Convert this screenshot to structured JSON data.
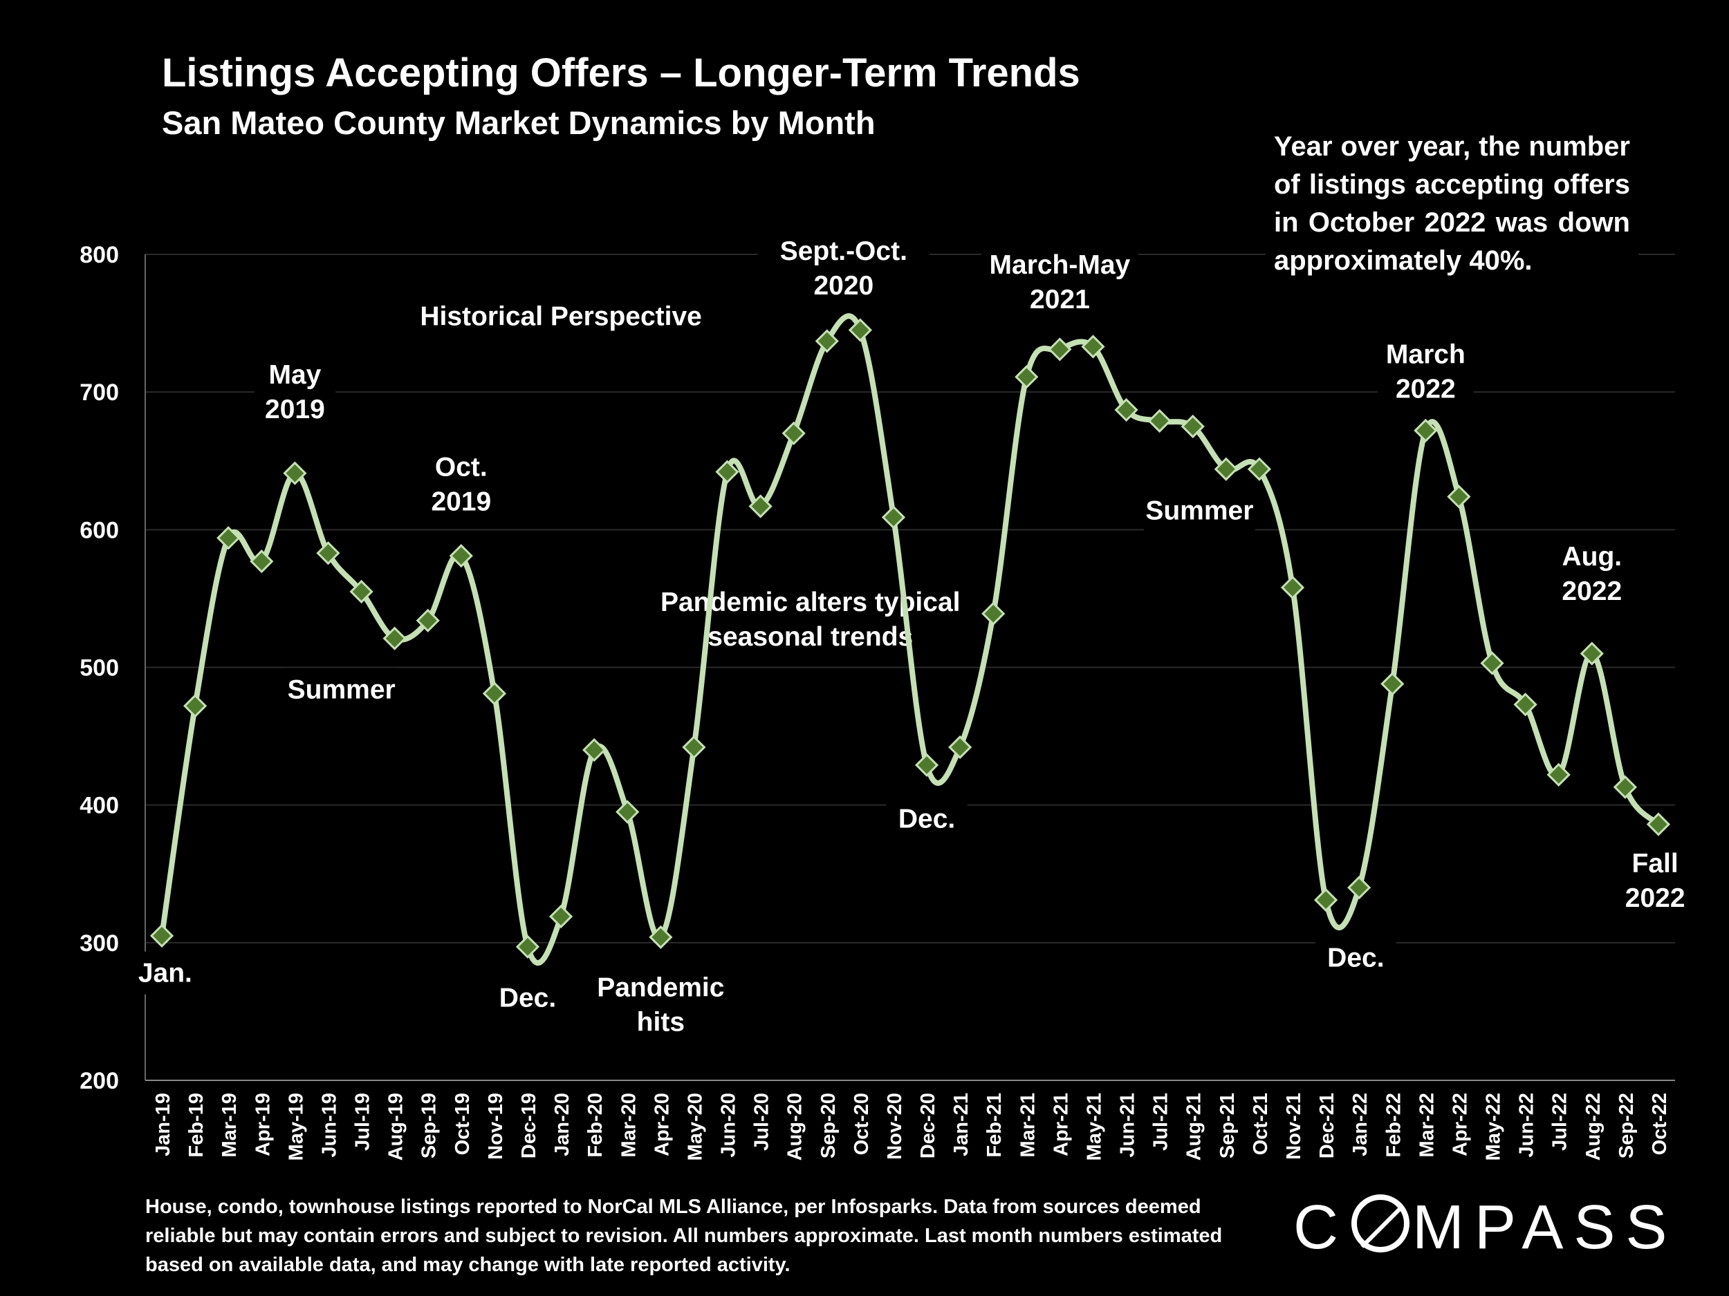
{
  "header": {
    "title": "Listings Accepting Offers – Longer-Term Trends",
    "subtitle": "San Mateo County Market Dynamics by Month"
  },
  "callout": "Year over year, the number of listings accepting offers in October 2022 was down approximately 40%.",
  "footnote": "House, condo, townhouse listings reported to NorCal MLS Alliance, per Infosparks. Data from sources deemed reliable but may contain errors and subject to revision. All numbers approximate. Last month numbers estimated based on available data, and may change with late reported activity.",
  "logo": {
    "pre": "C",
    "post": "MPASS"
  },
  "colors": {
    "background": "#000000",
    "line": "#c5e0b4",
    "marker": "#4f7a2e",
    "gridline": "#2a2a2a",
    "text": "#ffffff"
  },
  "chart_data": {
    "type": "line",
    "categories": [
      "Jan-19",
      "Feb-19",
      "Mar-19",
      "Apr-19",
      "May-19",
      "Jun-19",
      "Jul-19",
      "Aug-19",
      "Sep-19",
      "Oct-19",
      "Nov-19",
      "Dec-19",
      "Jan-20",
      "Feb-20",
      "Mar-20",
      "Apr-20",
      "May-20",
      "Jun-20",
      "Jul-20",
      "Aug-20",
      "Sep-20",
      "Oct-20",
      "Nov-20",
      "Dec-20",
      "Jan-21",
      "Feb-21",
      "Mar-21",
      "Apr-21",
      "May-21",
      "Jun-21",
      "Jul-21",
      "Aug-21",
      "Sep-21",
      "Oct-21",
      "Nov-21",
      "Dec-21",
      "Jan-22",
      "Feb-22",
      "Mar-22",
      "Apr-22",
      "May-22",
      "Jun-22",
      "Jul-22",
      "Aug-22",
      "Sep-22",
      "Oct-22"
    ],
    "values": [
      305,
      472,
      594,
      577,
      641,
      583,
      555,
      521,
      534,
      581,
      481,
      297,
      319,
      440,
      395,
      304,
      442,
      642,
      617,
      670,
      737,
      745,
      609,
      429,
      442,
      539,
      711,
      731,
      733,
      687,
      679,
      675,
      644,
      644,
      558,
      331,
      340,
      488,
      672,
      624,
      503,
      473,
      422,
      510,
      413,
      386
    ],
    "ylim": [
      200,
      800
    ],
    "yticks": [
      200,
      300,
      400,
      500,
      600,
      700,
      800
    ],
    "grid": true,
    "annotations": [
      {
        "lines": [
          "Historical Perspective"
        ],
        "index": 12,
        "value": 755
      },
      {
        "lines": [
          "May",
          "2019"
        ],
        "index": 4,
        "value": 700
      },
      {
        "lines": [
          "Oct.",
          "2019"
        ],
        "index": 9,
        "value": 633
      },
      {
        "lines": [
          "Summer"
        ],
        "index": 5.4,
        "value": 484
      },
      {
        "lines": [
          "Jan."
        ],
        "index": 0.1,
        "value": 278
      },
      {
        "lines": [
          "Dec."
        ],
        "index": 11,
        "value": 260
      },
      {
        "lines": [
          "Pandemic",
          "hits"
        ],
        "index": 15,
        "value": 255
      },
      {
        "lines": [
          "Sept.-Oct.",
          "2020"
        ],
        "index": 20.5,
        "value": 790
      },
      {
        "lines": [
          "Pandemic alters typical",
          "seasonal trends"
        ],
        "index": 19.5,
        "value": 535
      },
      {
        "lines": [
          "Dec."
        ],
        "index": 23,
        "value": 390
      },
      {
        "lines": [
          "March-May",
          "2021"
        ],
        "index": 27,
        "value": 780
      },
      {
        "lines": [
          "Summer"
        ],
        "index": 31.2,
        "value": 614
      },
      {
        "lines": [
          "March",
          "2022"
        ],
        "index": 38,
        "value": 715
      },
      {
        "lines": [
          "Dec."
        ],
        "index": 35.9,
        "value": 289
      },
      {
        "lines": [
          "Aug.",
          "2022"
        ],
        "index": 43,
        "value": 568
      },
      {
        "lines": [
          "Fall",
          "2022"
        ],
        "index": 44.9,
        "value": 345
      }
    ]
  }
}
